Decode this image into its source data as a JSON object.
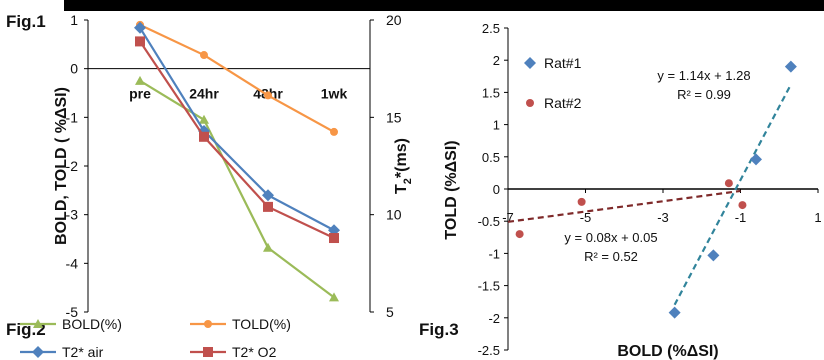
{
  "figure_labels": {
    "fig1": "Fig.1",
    "fig2": "Fig.2",
    "fig3": "Fig.3"
  },
  "chart_data": [
    {
      "type": "line",
      "categories": [
        "pre",
        "24hr",
        "48hr",
        "1wk"
      ],
      "ylabel": "BOLD, TOLD ( %ΔSI)",
      "y2label_main": "T",
      "y2label_sub": "2",
      "y2label_rest": "*(ms)",
      "ylim": [
        -5,
        1
      ],
      "yticks": [
        1,
        0,
        -1,
        -2,
        -3,
        -4,
        -5
      ],
      "y2lim": [
        5,
        20
      ],
      "y2ticks": [
        20,
        15,
        10,
        5
      ],
      "grid": false,
      "legend_position": "bottom",
      "series": [
        {
          "name": "BOLD(%)",
          "axis": "left",
          "values": [
            -0.25,
            -1.05,
            -3.68,
            -4.7
          ],
          "color": "#9bbb59",
          "marker": "triangle"
        },
        {
          "name": "TOLD(%)",
          "axis": "left",
          "values": [
            0.9,
            0.28,
            -0.55,
            -1.3
          ],
          "color": "#f79646",
          "marker": "circle"
        },
        {
          "name": "T2* air",
          "axis": "right",
          "values": [
            19.6,
            14.3,
            11.0,
            9.2
          ],
          "color": "#4f81bd",
          "marker": "diamond"
        },
        {
          "name": "T2* O2",
          "axis": "right",
          "values": [
            18.9,
            14.0,
            10.4,
            8.8
          ],
          "color": "#c0504d",
          "marker": "square"
        }
      ]
    },
    {
      "type": "scatter",
      "xlabel": "BOLD (%ΔSI)",
      "ylabel": "TOLD (%ΔSI)",
      "xlim": [
        -7,
        1
      ],
      "ylim": [
        -2.5,
        2.5
      ],
      "xticks": [
        "-7",
        "-5",
        "-3",
        "-1",
        "1"
      ],
      "yticks": [
        "2.5",
        "2",
        "1.5",
        "1",
        "0.5",
        "0",
        "-0.5",
        "-1",
        "-1.5",
        "-2",
        "-2.5"
      ],
      "legend_position": "top-left",
      "series": [
        {
          "name": "Rat#1",
          "color": "#4f81bd",
          "marker": "diamond",
          "points": [
            [
              -2.7,
              -1.92
            ],
            [
              -1.7,
              -1.03
            ],
            [
              -0.6,
              0.46
            ],
            [
              0.3,
              1.9
            ]
          ],
          "trend_color": "#31849b",
          "trend": {
            "slope": 1.14,
            "intercept": 1.28,
            "x_range": [
              -2.7,
              0.3
            ]
          },
          "equation": "y = 1.14x + 1.28",
          "r2": "R² = 0.99"
        },
        {
          "name": "Rat#2",
          "color": "#c0504d",
          "marker": "circle",
          "points": [
            [
              -6.7,
              -0.7
            ],
            [
              -5.1,
              -0.2
            ],
            [
              -1.3,
              0.09
            ],
            [
              -0.95,
              -0.25
            ]
          ],
          "trend_color": "#7f2a2a",
          "trend": {
            "slope": 0.08,
            "intercept": 0.05,
            "x_range": [
              -7,
              -1.0
            ]
          },
          "equation": "y = 0.08x + 0.05",
          "r2": "R² = 0.52"
        }
      ]
    }
  ]
}
